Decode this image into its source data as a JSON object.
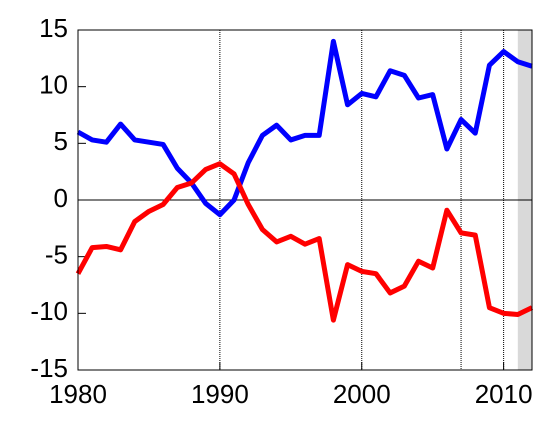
{
  "chart_data": {
    "type": "line",
    "x": [
      1980,
      1981,
      1982,
      1983,
      1984,
      1985,
      1986,
      1987,
      1988,
      1989,
      1990,
      1991,
      1992,
      1993,
      1994,
      1995,
      1996,
      1997,
      1998,
      1999,
      2000,
      2001,
      2002,
      2003,
      2004,
      2005,
      2006,
      2007,
      2008,
      2009,
      2010,
      2011,
      2012
    ],
    "series": [
      {
        "color": "#0000ff",
        "values": [
          6.0,
          5.3,
          5.1,
          6.7,
          5.3,
          5.1,
          4.9,
          2.8,
          1.5,
          -0.3,
          -1.3,
          0.0,
          3.3,
          5.7,
          6.6,
          5.3,
          5.7,
          5.7,
          14.0,
          8.4,
          9.4,
          9.1,
          11.4,
          11.0,
          9.0,
          9.3,
          4.5,
          7.1,
          5.9,
          11.9,
          13.1,
          12.2,
          11.8
        ]
      },
      {
        "color": "#ff0000",
        "values": [
          -6.5,
          -4.2,
          -4.1,
          -4.4,
          -1.9,
          -1.0,
          -0.4,
          1.1,
          1.5,
          2.7,
          3.2,
          2.3,
          -0.4,
          -2.6,
          -3.7,
          -3.2,
          -3.9,
          -3.4,
          -10.6,
          -5.7,
          -6.3,
          -6.5,
          -8.2,
          -7.6,
          -5.4,
          -6.0,
          -0.9,
          -2.9,
          -3.1,
          -9.5,
          -10.0,
          -10.1,
          -9.5
        ]
      }
    ],
    "xlim": [
      1980,
      2012
    ],
    "xticks": [
      1980,
      1990,
      2000,
      2010
    ],
    "ylim": [
      -15,
      15
    ],
    "yticks": [
      -15,
      -10,
      -5,
      0,
      5,
      10,
      15
    ],
    "reference_x": [
      2007
    ],
    "reference_y": [
      0
    ],
    "shaded_x": [
      2011,
      2012
    ],
    "grid": true
  }
}
